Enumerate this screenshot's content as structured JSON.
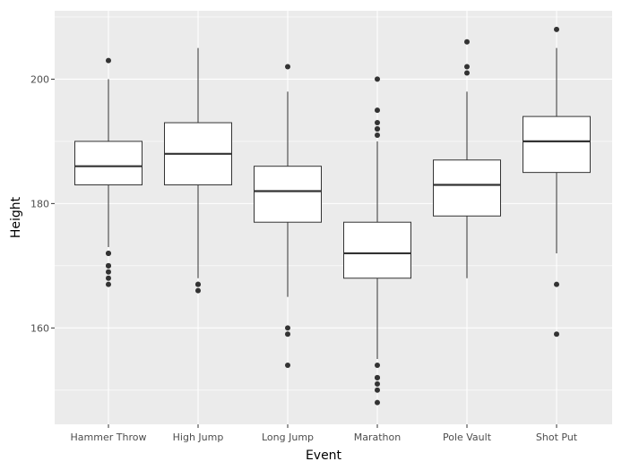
{
  "chart_data": {
    "type": "boxplot",
    "title": "",
    "xlabel": "Event",
    "ylabel": "Height",
    "ylim": [
      144.5,
      211
    ],
    "yticks": [
      160,
      180,
      200
    ],
    "grid": true,
    "categories": [
      "Hammer Throw",
      "High Jump",
      "Long Jump",
      "Marathon",
      "Pole Vault",
      "Shot Put"
    ],
    "boxes": [
      {
        "category": "Hammer Throw",
        "whisker_low": 173,
        "q1": 183,
        "median": 186,
        "q3": 190,
        "whisker_high": 200,
        "outliers": [
          167,
          168,
          169,
          170,
          170,
          172,
          172,
          203
        ]
      },
      {
        "category": "High Jump",
        "whisker_low": 168,
        "q1": 183,
        "median": 188,
        "q3": 193,
        "whisker_high": 205,
        "outliers": [
          166,
          167,
          167
        ]
      },
      {
        "category": "Long Jump",
        "whisker_low": 165,
        "q1": 177,
        "median": 182,
        "q3": 186,
        "whisker_high": 198,
        "outliers": [
          154,
          159,
          160,
          202
        ]
      },
      {
        "category": "Marathon",
        "whisker_low": 155,
        "q1": 168,
        "median": 172,
        "q3": 177,
        "whisker_high": 190,
        "outliers": [
          148,
          150,
          151,
          152,
          152,
          154,
          191,
          192,
          192,
          193,
          195,
          200
        ]
      },
      {
        "category": "Pole Vault",
        "whisker_low": 168,
        "q1": 178,
        "median": 183,
        "q3": 187,
        "whisker_high": 198,
        "outliers": [
          201,
          202,
          206
        ]
      },
      {
        "category": "Shot Put",
        "whisker_low": 172,
        "q1": 185,
        "median": 190,
        "q3": 194,
        "whisker_high": 205,
        "outliers": [
          159,
          167,
          208
        ]
      }
    ],
    "colors": {
      "panel_background": "#ebebeb",
      "grid_major": "#ffffff",
      "box_fill": "#ffffff",
      "box_line": "#333333",
      "outlier": "#333333",
      "tick_text": "#4d4d4d",
      "title_text": "#000000"
    }
  }
}
